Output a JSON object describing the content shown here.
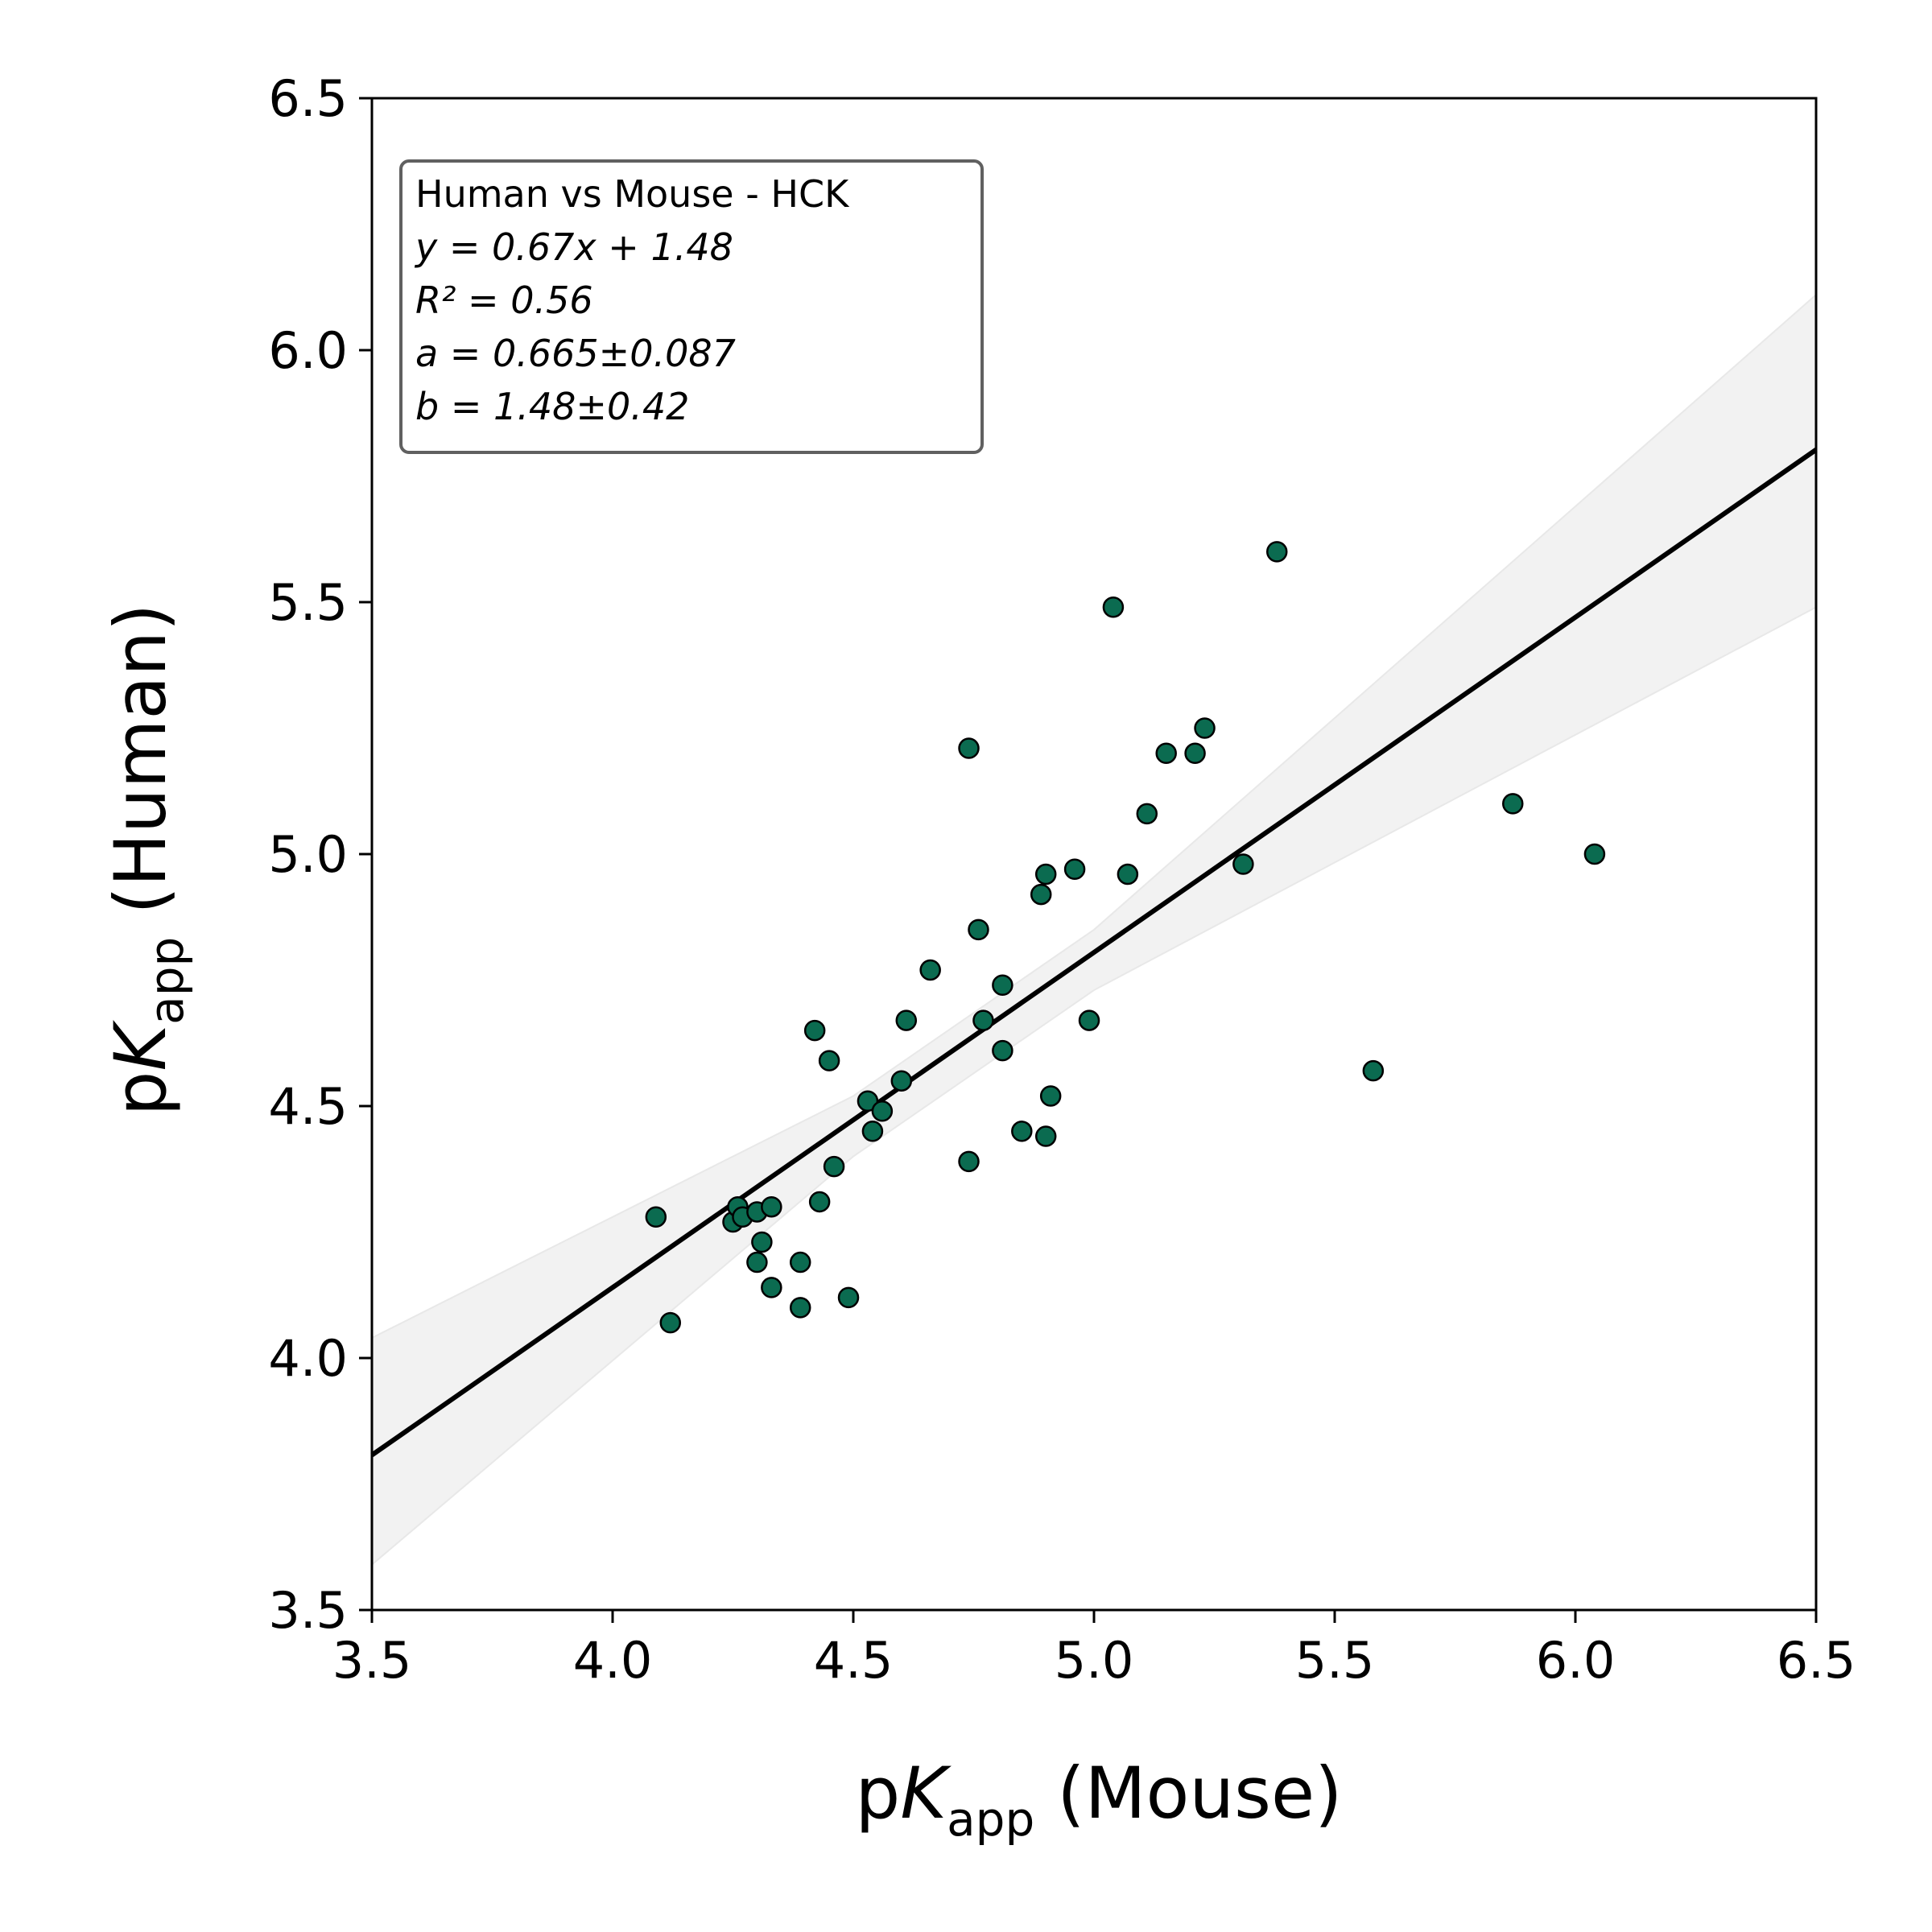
{
  "chart_data": {
    "type": "scatter",
    "x_label": {
      "prefix": "p",
      "var": "K",
      "sub": "app",
      "suffix": " (Mouse)"
    },
    "y_label": {
      "prefix": "p",
      "var": "K",
      "sub": "app",
      "suffix": " (Human)"
    },
    "xlim": [
      3.5,
      6.5
    ],
    "ylim": [
      3.5,
      6.5
    ],
    "x_ticks": [
      "3.5",
      "4.0",
      "4.5",
      "5.0",
      "5.5",
      "6.0",
      "6.5"
    ],
    "y_ticks": [
      "3.5",
      "4.0",
      "4.5",
      "5.0",
      "5.5",
      "6.0",
      "6.5"
    ],
    "grid": false,
    "colors": {
      "point_fill": "#0b6b50",
      "point_edge": "#000000",
      "fit_line": "#000000",
      "confidence_band": "#f2f2f2",
      "annotation_border": "#606060"
    },
    "fit": {
      "slope": 0.665,
      "intercept": 1.48
    },
    "confidence_band": {
      "lower": [
        [
          3.5,
          3.59
        ],
        [
          4.5,
          4.4
        ],
        [
          5.0,
          4.73
        ],
        [
          6.5,
          5.49
        ]
      ],
      "upper": [
        [
          3.5,
          4.04
        ],
        [
          4.5,
          4.52
        ],
        [
          5.0,
          4.85
        ],
        [
          6.5,
          6.11
        ]
      ]
    },
    "annotation": {
      "location": "top-left",
      "title": "Human vs Mouse - HCK",
      "fit_equation": "y = 0.67x + 1.48",
      "r_squared": "R² = 0.56",
      "a_value": "a = 0.665±0.087",
      "b_value": "b = 1.48±0.42"
    },
    "points": [
      [
        4.09,
        4.28
      ],
      [
        4.12,
        4.07
      ],
      [
        4.25,
        4.27
      ],
      [
        4.26,
        4.3
      ],
      [
        4.27,
        4.28
      ],
      [
        4.3,
        4.29
      ],
      [
        4.33,
        4.3
      ],
      [
        4.3,
        4.19
      ],
      [
        4.31,
        4.23
      ],
      [
        4.33,
        4.14
      ],
      [
        4.39,
        4.19
      ],
      [
        4.39,
        4.1
      ],
      [
        4.42,
        4.65
      ],
      [
        4.43,
        4.31
      ],
      [
        4.45,
        4.59
      ],
      [
        4.46,
        4.38
      ],
      [
        4.49,
        4.12
      ],
      [
        4.53,
        4.51
      ],
      [
        4.54,
        4.45
      ],
      [
        4.56,
        4.49
      ],
      [
        4.6,
        4.55
      ],
      [
        4.61,
        4.67
      ],
      [
        4.66,
        4.77
      ],
      [
        4.74,
        5.21
      ],
      [
        4.74,
        4.39
      ],
      [
        4.76,
        4.85
      ],
      [
        4.77,
        4.67
      ],
      [
        4.81,
        4.74
      ],
      [
        4.81,
        4.61
      ],
      [
        4.85,
        4.45
      ],
      [
        4.89,
        4.92
      ],
      [
        4.9,
        4.96
      ],
      [
        4.9,
        4.44
      ],
      [
        4.91,
        4.52
      ],
      [
        4.96,
        4.97
      ],
      [
        4.99,
        4.67
      ],
      [
        5.04,
        5.49
      ],
      [
        5.07,
        4.96
      ],
      [
        5.11,
        5.08
      ],
      [
        5.15,
        5.2
      ],
      [
        5.21,
        5.2
      ],
      [
        5.23,
        5.25
      ],
      [
        5.31,
        4.98
      ],
      [
        5.38,
        5.6
      ],
      [
        5.58,
        4.57
      ],
      [
        5.87,
        5.1
      ],
      [
        6.04,
        5.0
      ]
    ]
  }
}
